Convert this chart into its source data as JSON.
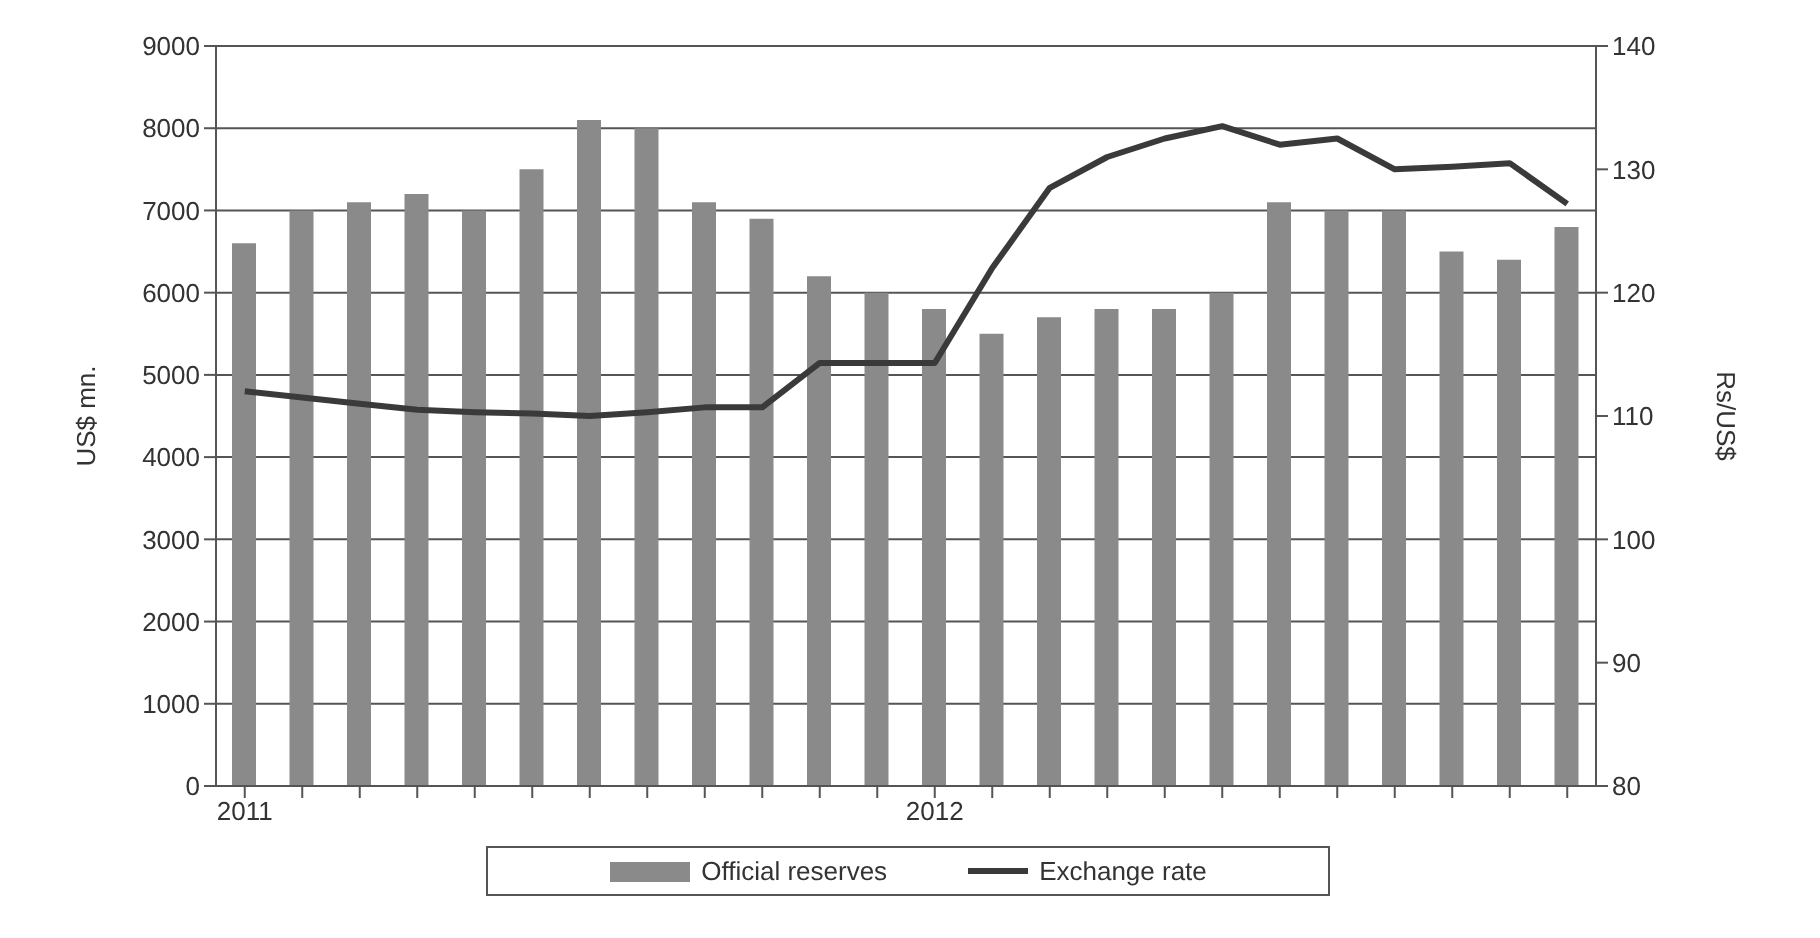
{
  "chart_data": {
    "type": "bar",
    "categories": [
      "2011",
      null,
      null,
      null,
      null,
      null,
      null,
      null,
      null,
      null,
      null,
      null,
      "2012",
      null,
      null,
      null,
      null,
      null,
      null,
      null,
      null,
      null,
      null,
      null
    ],
    "ylabel": "US$ mn.",
    "y2label": "Rs/US$",
    "ylim": [
      0,
      9000
    ],
    "yticks": [
      0,
      1000,
      2000,
      3000,
      4000,
      5000,
      6000,
      7000,
      8000,
      9000
    ],
    "y2lim": [
      80,
      140
    ],
    "y2ticks": [
      80,
      90,
      100,
      110,
      120,
      130,
      140
    ],
    "grid": "y",
    "legend": "bottom",
    "series": [
      {
        "name": "Official reserves",
        "color": "#8a8a8a",
        "values": [
          6600,
          7000,
          7100,
          7200,
          7000,
          7500,
          8100,
          8000,
          7100,
          6900,
          6200,
          6000,
          5800,
          5500,
          5700,
          5800,
          5800,
          6000,
          7100,
          7000,
          7000,
          6500,
          6400,
          6800
        ]
      },
      {
        "name": "Exchange rate",
        "type": "line",
        "axis": "y2",
        "color": "#3a3a3a",
        "values": [
          112,
          111.5,
          111,
          110.5,
          110.3,
          110.2,
          110,
          110.3,
          110.7,
          110.7,
          114.3,
          114.3,
          114.3,
          122,
          128.5,
          131,
          132.5,
          133.5,
          132,
          132.5,
          130,
          130.2,
          130.5,
          127.2
        ]
      }
    ]
  }
}
